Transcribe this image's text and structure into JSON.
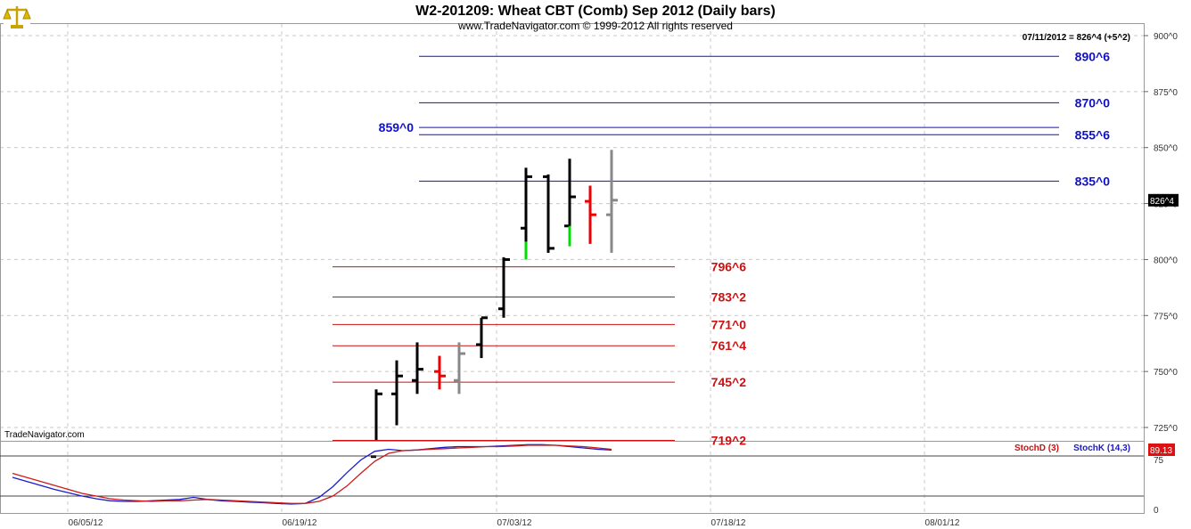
{
  "header": {
    "title": "W2-201209:  Wheat CBT (Comb) Sep 2012  (Daily bars)",
    "copyright": "www.TradeNavigator.com © 1999-2012 All rights reserved"
  },
  "watermark": "TradeNavigator.com",
  "logo_icon": "scales-icon",
  "last_price_readout": "07/11/2012 = 826^4 (+5^2)",
  "price_tag": "826^4",
  "stoch_tag": "89.13",
  "colors": {
    "up_bar": "#000000",
    "down_bar": "#ee0000",
    "neutral_bar": "#888888",
    "wick_up": "#00dd00",
    "blue_level": "#1010cc",
    "red_level": "#cc1010",
    "stochK": "#1a1acc",
    "stochD": "#cc1a1a"
  },
  "chart_data": {
    "type": "bar",
    "title": "W2-201209:  Wheat CBT (Comb) Sep 2012  (Daily bars)",
    "x_tick_labels": [
      "06/05/12",
      "06/19/12",
      "07/03/12",
      "07/18/12",
      "08/01/12"
    ],
    "y_ticks": [
      725,
      750,
      775,
      800,
      825,
      850,
      875,
      900
    ],
    "y_tick_labels": [
      "725^0",
      "750^0",
      "775^0",
      "800^0",
      "825^0",
      "850^0",
      "875^0",
      "900^0"
    ],
    "ylim": [
      712,
      903
    ],
    "grid": true,
    "bars": [
      {
        "date": "06/25/12",
        "open": 712,
        "high": 742,
        "low": 710,
        "close": 740,
        "color": "up"
      },
      {
        "date": "06/26/12",
        "open": 740,
        "high": 755,
        "low": 726,
        "close": 748,
        "color": "up"
      },
      {
        "date": "06/27/12",
        "open": 746,
        "high": 763,
        "low": 740,
        "close": 751,
        "color": "up"
      },
      {
        "date": "06/28/12",
        "open": 750,
        "high": 757,
        "low": 742,
        "close": 748,
        "color": "down"
      },
      {
        "date": "06/29/12",
        "open": 746,
        "high": 763,
        "low": 740,
        "close": 758,
        "color": "neutral"
      },
      {
        "date": "07/02/12",
        "open": 762,
        "high": 774,
        "low": 756,
        "close": 774,
        "color": "up"
      },
      {
        "date": "07/03/12",
        "open": 778,
        "high": 801,
        "low": 774,
        "close": 800,
        "color": "up"
      },
      {
        "date": "07/05/12",
        "open": 814,
        "high": 841,
        "low": 800,
        "close": 837,
        "color": "up"
      },
      {
        "date": "07/06/12",
        "open": 837,
        "high": 838,
        "low": 803,
        "close": 805,
        "color": "up"
      },
      {
        "date": "07/09/12",
        "open": 815,
        "high": 845,
        "low": 806,
        "close": 828,
        "color": "up"
      },
      {
        "date": "07/10/12",
        "open": 826,
        "high": 833,
        "low": 807,
        "close": 820,
        "color": "down"
      },
      {
        "date": "07/11/12",
        "open": 820,
        "high": 849,
        "low": 803,
        "close": 826.5,
        "color": "neutral"
      }
    ],
    "levels_blue": [
      {
        "value": 890.75,
        "label": "890^6"
      },
      {
        "value": 870.0,
        "label": "870^0"
      },
      {
        "value": 859.0,
        "label": "859^0"
      },
      {
        "value": 855.75,
        "label": "855^6"
      },
      {
        "value": 835.0,
        "label": "835^0"
      }
    ],
    "levels_red": [
      {
        "value": 796.75,
        "label": "796^6"
      },
      {
        "value": 783.25,
        "label": "783^2"
      },
      {
        "value": 771.0,
        "label": "771^0"
      },
      {
        "value": 761.5,
        "label": "761^4"
      },
      {
        "value": 745.25,
        "label": "745^2"
      },
      {
        "value": 719.25,
        "label": "719^2"
      }
    ],
    "stochastic": {
      "legend": [
        "StochD (3)",
        "StochK (14,3)"
      ],
      "y_tick_labels": [
        "0",
        "75"
      ],
      "ylim": [
        0,
        100
      ],
      "ref_lines": [
        20,
        80
      ],
      "stochK": [
        48,
        42,
        36,
        30,
        25,
        20,
        16,
        13,
        12,
        12,
        13,
        14,
        15,
        18,
        15,
        13,
        12,
        11,
        10,
        9,
        8,
        9,
        18,
        34,
        55,
        74,
        87,
        90,
        88,
        89,
        91,
        93,
        94,
        94,
        94,
        95,
        96,
        97,
        97,
        96,
        94,
        92,
        90,
        89
      ],
      "stochD": [
        54,
        48,
        42,
        36,
        30,
        24,
        20,
        16,
        14,
        13,
        12,
        13,
        13,
        14,
        15,
        14,
        13,
        12,
        11,
        10,
        9,
        9,
        12,
        20,
        35,
        54,
        72,
        84,
        88,
        89,
        90,
        91,
        92,
        93,
        94,
        94,
        95,
        96,
        96,
        96,
        95,
        94,
        92,
        90
      ]
    }
  }
}
